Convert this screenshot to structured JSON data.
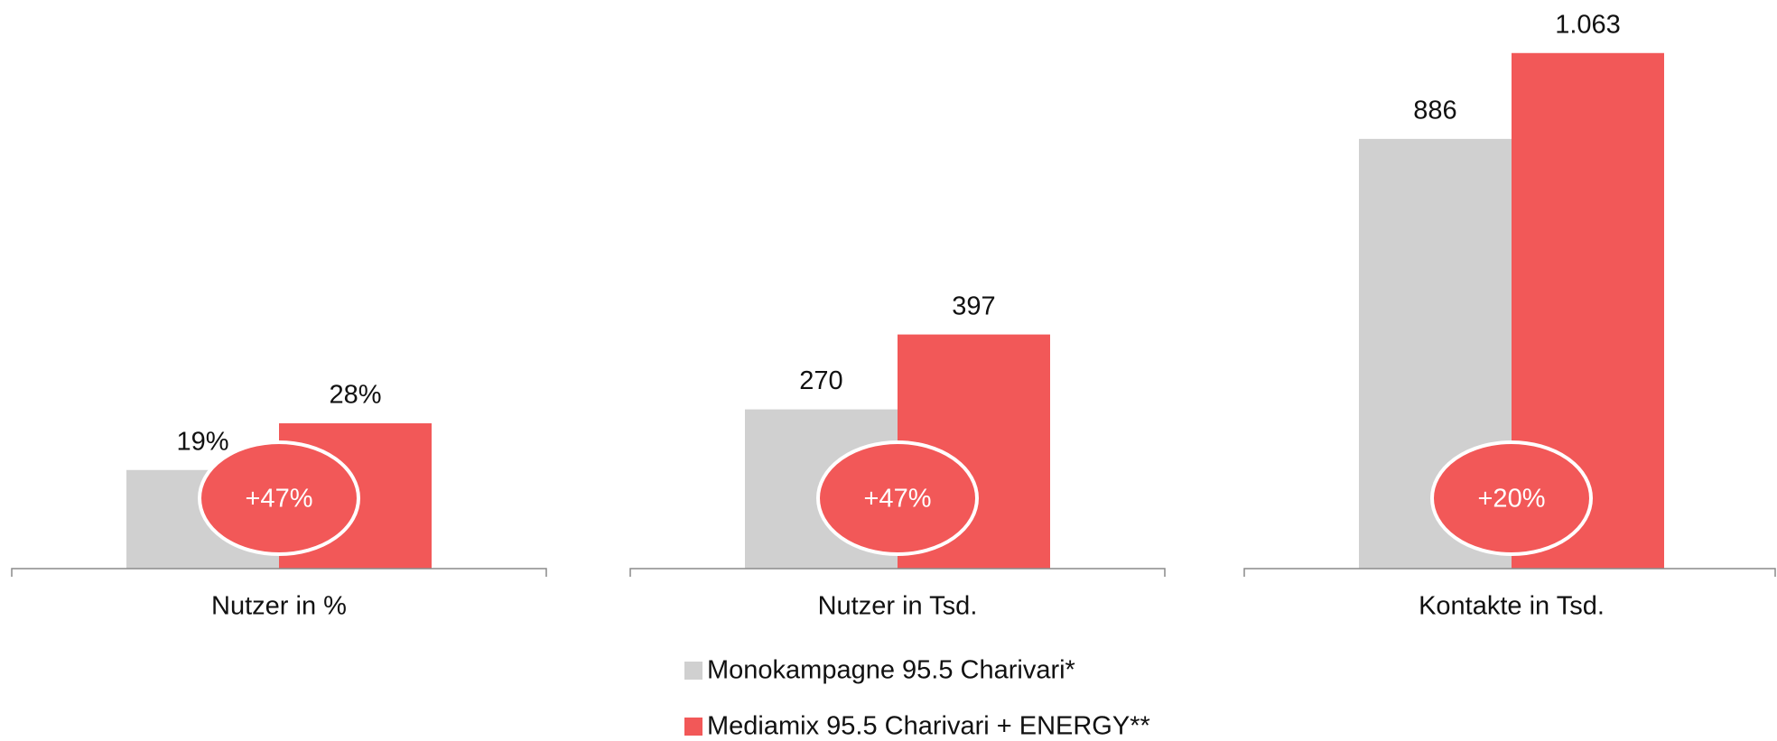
{
  "chart_data": [
    {
      "type": "bar",
      "xlabel": "Nutzer in %",
      "values": [
        19,
        28
      ],
      "value_labels": [
        "19%",
        "28%"
      ],
      "annotation": "+47%",
      "ylim": [
        0,
        100
      ]
    },
    {
      "type": "bar",
      "xlabel": "Nutzer in Tsd.",
      "values": [
        270,
        397
      ],
      "annotation": "+47%",
      "ylim": [
        0,
        880
      ]
    },
    {
      "type": "bar",
      "xlabel": "Kontakte in Tsd.",
      "values": [
        886,
        1063
      ],
      "value_labels": [
        "886",
        "1.063"
      ],
      "annotation": "+20%",
      "ylim": [
        0,
        1070
      ]
    }
  ],
  "legend": [
    {
      "name": "Monokampagne 95.5 Charivari*",
      "color": "#d0d0d0"
    },
    {
      "name": "Mediamix 95.5 Charivari + ENERGY**",
      "color": "#f25858"
    }
  ]
}
